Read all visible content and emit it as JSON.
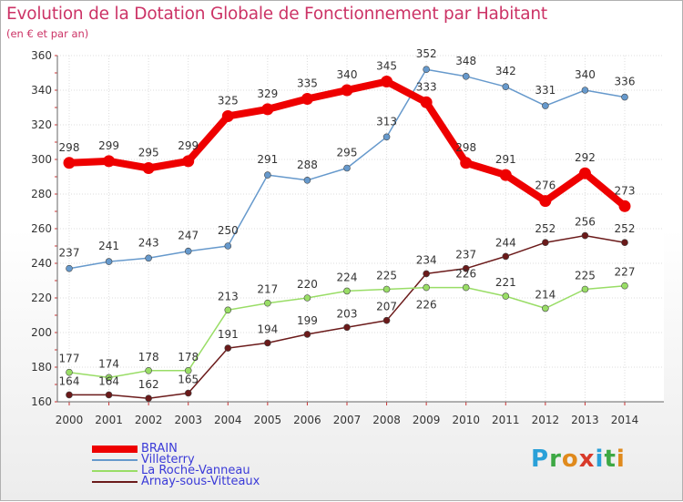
{
  "header": {
    "title": "Evolution de la Dotation Globale de Fonctionnement par Habitant",
    "subtitle": "(en € et par an)"
  },
  "logo": {
    "text": "Proxiti",
    "letters": [
      "P",
      "r",
      "o",
      "x",
      "i",
      "t",
      "i"
    ],
    "colors": [
      "#2aa0d8",
      "#3da844",
      "#e08a1c",
      "#d83a2a",
      "#2aa0d8",
      "#3da844",
      "#e08a1c"
    ]
  },
  "chart_data": {
    "type": "line",
    "title": "Evolution de la Dotation Globale de Fonctionnement par Habitant",
    "subtitle": "(en € et par an)",
    "xlabel": "",
    "ylabel": "",
    "x": [
      "2000",
      "2001",
      "2002",
      "2003",
      "2004",
      "2005",
      "2006",
      "2007",
      "2008",
      "2009",
      "2010",
      "2011",
      "2012",
      "2013",
      "2014"
    ],
    "ylim": [
      160,
      360
    ],
    "yticks": [
      160,
      180,
      200,
      220,
      240,
      260,
      280,
      300,
      320,
      340,
      360
    ],
    "grid": true,
    "legend_position": "bottom-left",
    "series": [
      {
        "name": "BRAIN",
        "color": "#ee0000",
        "values": [
          298,
          299,
          295,
          299,
          325,
          329,
          335,
          340,
          345,
          333,
          298,
          291,
          276,
          292,
          273
        ]
      },
      {
        "name": "Villeterry",
        "color": "#6699cc",
        "values": [
          237,
          241,
          243,
          247,
          250,
          291,
          288,
          295,
          313,
          352,
          348,
          342,
          331,
          340,
          336
        ]
      },
      {
        "name": "La Roche-Vanneau",
        "color": "#99dd66",
        "values": [
          177,
          174,
          178,
          178,
          213,
          217,
          220,
          224,
          225,
          226,
          226,
          221,
          214,
          225,
          227
        ]
      },
      {
        "name": "Arnay-sous-Vitteaux",
        "color": "#6b1a1a",
        "values": [
          164,
          164,
          162,
          165,
          191,
          194,
          199,
          203,
          207,
          234,
          237,
          244,
          252,
          256,
          252
        ]
      }
    ]
  }
}
